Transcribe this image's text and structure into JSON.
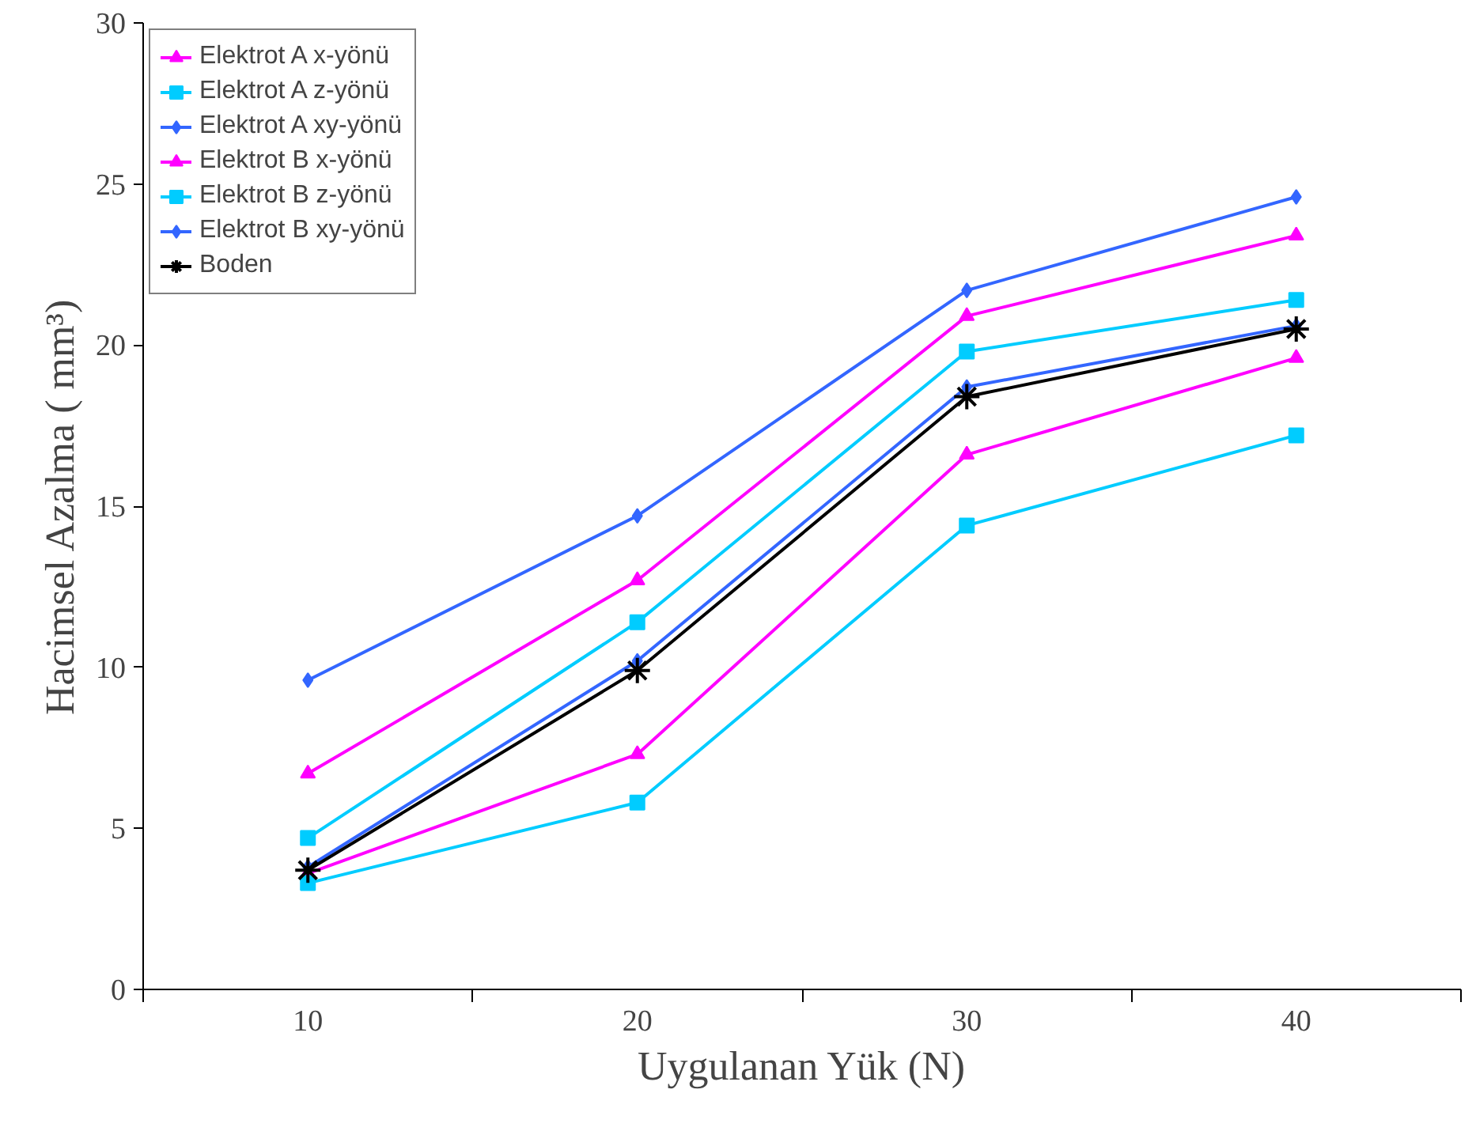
{
  "chart_data": {
    "type": "line",
    "xlabel": "Uygulanan Yük (N)",
    "ylabel": "Hacimsel Azalma ( mm³)",
    "categories": [
      "10",
      "20",
      "30",
      "40"
    ],
    "ylim": [
      0,
      30
    ],
    "yticks": [
      0,
      5,
      10,
      15,
      20,
      25,
      30
    ],
    "grid": false,
    "legend": "top left",
    "series": [
      {
        "name": "Elektrot A x-yönü",
        "color": "#ff00ff",
        "marker": "triangle",
        "values": [
          6.7,
          12.7,
          20.9,
          23.4
        ]
      },
      {
        "name": "Elektrot A z-yönü",
        "color": "#00ccff",
        "marker": "square",
        "values": [
          4.7,
          11.4,
          19.8,
          21.4
        ]
      },
      {
        "name": "Elektrot A xy-yönü",
        "color": "#3366ff",
        "marker": "diamond",
        "values": [
          9.6,
          14.7,
          21.7,
          24.6
        ]
      },
      {
        "name": "Elektrot B x-yönü",
        "color": "#ff00ff",
        "marker": "triangle",
        "values": [
          3.6,
          7.3,
          16.6,
          19.6
        ]
      },
      {
        "name": "Elektrot B z-yönü",
        "color": "#00ccff",
        "marker": "square",
        "values": [
          3.3,
          5.8,
          14.4,
          17.2
        ]
      },
      {
        "name": "Elektrot B xy-yönü",
        "color": "#3366ff",
        "marker": "diamond",
        "values": [
          3.8,
          10.2,
          18.7,
          20.6
        ]
      },
      {
        "name": "Boden",
        "color": "#000000",
        "marker": "cross",
        "values": [
          3.7,
          9.9,
          18.4,
          20.5
        ]
      }
    ]
  }
}
